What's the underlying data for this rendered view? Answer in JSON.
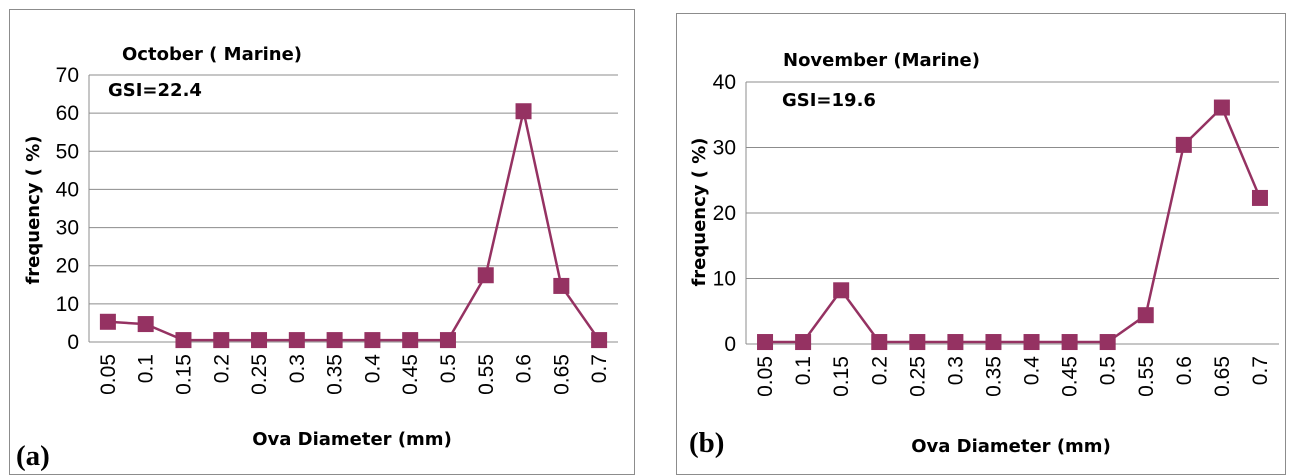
{
  "chart_data": [
    {
      "type": "line",
      "panel_label": "(a)",
      "title": "October ( Marine)",
      "annotation": "GSI=22.4",
      "xlabel": "Ova Diameter (mm)",
      "ylabel": "frequency ( %)",
      "ylim": [
        0,
        70
      ],
      "yticks": [
        "0",
        "10",
        "20",
        "30",
        "40",
        "50",
        "60",
        "70"
      ],
      "categories": [
        "0.05",
        "0.1",
        "0.15",
        "0.2",
        "0.25",
        "0.3",
        "0.35",
        "0.4",
        "0.45",
        "0.5",
        "0.55",
        "0.6",
        "0.65",
        "0.7"
      ],
      "values": [
        5.3,
        4.7,
        0.5,
        0.5,
        0.5,
        0.5,
        0.5,
        0.5,
        0.5,
        0.5,
        17.5,
        60.5,
        14.7,
        0.5
      ],
      "grid": true,
      "marker": "square",
      "color": "#953262"
    },
    {
      "type": "line",
      "panel_label": "(b)",
      "title": "November (Marine)",
      "annotation": "GSI=19.6",
      "xlabel": "Ova Diameter (mm)",
      "ylabel": "frequency ( %)",
      "ylim": [
        0,
        40
      ],
      "yticks": [
        "0",
        "10",
        "20",
        "30",
        "40"
      ],
      "categories": [
        "0.05",
        "0.1",
        "0.15",
        "0.2",
        "0.25",
        "0.3",
        "0.35",
        "0.4",
        "0.45",
        "0.5",
        "0.55",
        "0.6",
        "0.65",
        "0.7"
      ],
      "values": [
        0.3,
        0.3,
        8.2,
        0.3,
        0.3,
        0.3,
        0.3,
        0.3,
        0.3,
        0.3,
        4.4,
        30.4,
        36.1,
        22.3
      ],
      "grid": true,
      "marker": "square",
      "color": "#953262"
    }
  ]
}
